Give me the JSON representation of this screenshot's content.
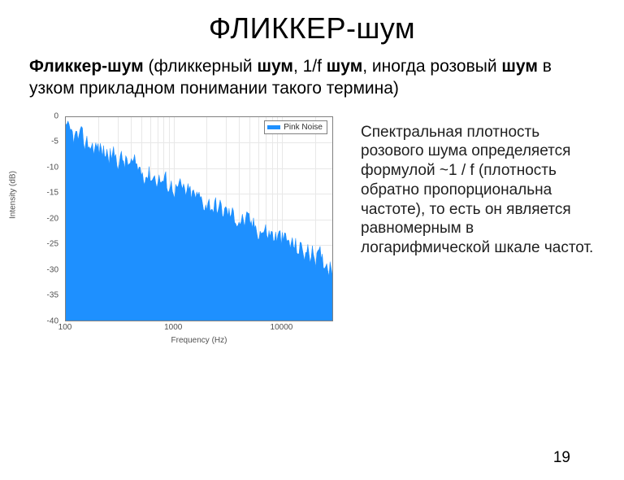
{
  "title": "ФЛИККЕР-шум",
  "intro": {
    "p1_bold": "Фликкер-шум",
    "p1_mid1": " (фликкерный ",
    "p1_bold2": "шум",
    "p1_mid2": ", 1/f ",
    "p1_bold3": "шум",
    "p1_mid3": ", иногда розовый ",
    "p1_bold4": "шум",
    "p1_tail": " в узком прикладном понимании такого термина)"
  },
  "right_paragraph": "Спектральная плотность розового шума определяется формулой ~1 / f (плотность обратно пропорциональна частоте), то есть он является равномерным в логарифмической шкале частот.",
  "slide_number": "19",
  "chart": {
    "type": "area",
    "x_scale": "log",
    "xlim": [
      100,
      30000
    ],
    "ylim": [
      -40,
      0
    ],
    "y_ticks": [
      0,
      -5,
      -10,
      -15,
      -20,
      -25,
      -30,
      -35,
      -40
    ],
    "x_ticks": [
      100,
      1000,
      10000
    ],
    "x_tick_labels": [
      "100",
      "1000",
      "10000"
    ],
    "xlabel": "Frequency (Hz)",
    "ylabel": "Intensity (dB)",
    "legend_label": "Pink Noise",
    "series_color": "#1e90ff",
    "background_color": "#ffffff",
    "grid_color": "#e8e8e8",
    "border_color": "#808080",
    "label_fontsize": 10,
    "trend": {
      "f0": 100,
      "db0": -3,
      "f1": 30000,
      "db1": -29
    },
    "noise_amp_db": 4.0,
    "n_points": 240
  }
}
